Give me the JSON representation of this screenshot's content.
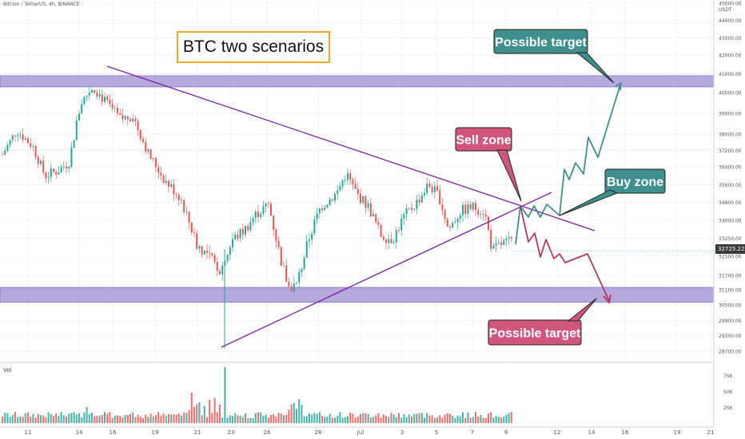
{
  "header": {
    "symbol": "Bitcoin / TetherUS, 4h, BINANCE",
    "currency": "USDT"
  },
  "title": "BTC two scenarios",
  "current_price": "32725.22",
  "annotations": {
    "sell_zone": "Sell zone",
    "buy_zone": "Buy zone",
    "target_up": "Possible target",
    "target_down": "Possible target"
  },
  "volume_label": "Vol",
  "colors": {
    "up": "#26a69a",
    "down": "#ef5350",
    "zone": "#9c8cd2",
    "trendline": "#7b1fa2",
    "callout_red": "#d1567e",
    "callout_green": "#3f8f8f",
    "path_up": "#3f8f8f",
    "path_down": "#b23a5e",
    "title_border": "#f5a623"
  },
  "chart_data": {
    "type": "candlestick",
    "timeframe": "4h",
    "x_ticks": [
      "11",
      "14",
      "16",
      "19",
      "21",
      "23",
      "26",
      "28",
      "Jul",
      "3",
      "5",
      "7",
      "9",
      "12",
      "14",
      "16",
      "19",
      "21"
    ],
    "y_ticks": [
      28700,
      29300,
      29900,
      30500,
      31100,
      31700,
      32500,
      33250,
      34000,
      34800,
      35600,
      36400,
      37200,
      38000,
      39000,
      40000,
      41000,
      42000,
      43000,
      44000,
      45000
    ],
    "y_tick_labels": [
      "28700.00",
      "29300.00",
      "29900.00",
      "30500.00",
      "31100.00",
      "31700.00",
      "32500.00",
      "33250.00",
      "34000.00",
      "34800.00",
      "35600.00",
      "36400.00",
      "37200.00",
      "38000.00",
      "39000.00",
      "40000.00",
      "41000.00",
      "42000.00",
      "43000.00",
      "44000.00",
      "45000.00"
    ],
    "volume_ticks": [
      "25K",
      "50K",
      "75K"
    ],
    "resistance_zone": [
      40300,
      40900
    ],
    "support_zone": [
      30600,
      31200
    ],
    "scenario_up_path": [
      33000,
      34600,
      33900,
      34500,
      34000,
      36300,
      35800,
      36600,
      36100,
      37700,
      37000,
      40350
    ],
    "scenario_down_path": [
      34600,
      32600,
      33300,
      32400,
      33000,
      32300,
      32900,
      30850
    ],
    "sell_zone_price": 34600,
    "buy_zone_price": 34000
  }
}
